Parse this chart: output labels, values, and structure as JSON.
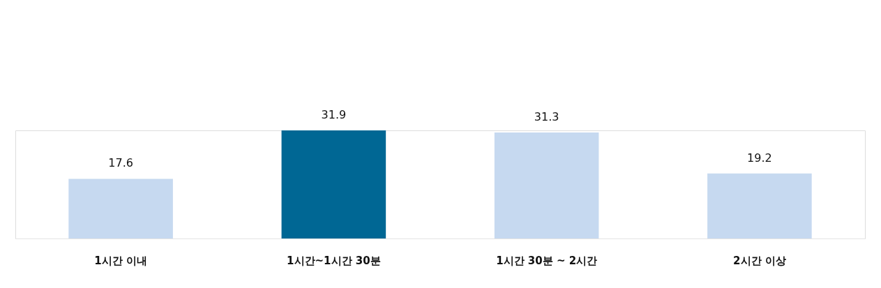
{
  "chart_data": {
    "type": "bar",
    "categories": [
      "1시간 이내",
      "1시간~1시간 30분",
      "1시간 30분 ~ 2시간",
      "2시간 이상"
    ],
    "values": [
      17.6,
      31.9,
      31.3,
      19.2
    ],
    "colors": [
      "#c6d9f0",
      "#006794",
      "#c6d9f0",
      "#c6d9f0"
    ],
    "data_labels": true
  }
}
